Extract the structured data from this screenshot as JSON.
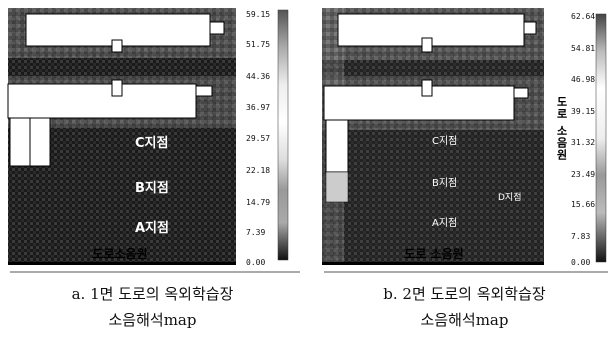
{
  "panels": [
    {
      "id": "a",
      "scale_labels": [
        "59.15",
        "51.75",
        "44.36",
        "36.97",
        "29.57",
        "22.18",
        "14.79",
        "7.39",
        "0.00"
      ],
      "point_labels": {
        "c": "C지점",
        "b": "B지점",
        "a": "A지점"
      },
      "source_label": "도로소음원",
      "caption_line1": "a. 1면 도로의 옥외학습장",
      "caption_line2": "소음해석map"
    },
    {
      "id": "b",
      "scale_labels": [
        "62.64",
        "54.81",
        "46.98",
        "39.15",
        "31.32",
        "23.49",
        "15.66",
        "7.83",
        "0.00"
      ],
      "point_labels": {
        "c": "C지점",
        "b": "B지점",
        "d": "D지점",
        "a": "A지점"
      },
      "source_label": "도로 소음원",
      "side_label": "도로 소음원",
      "caption_line1": "b. 2면 도로의 옥외학습장",
      "caption_line2": "소음해석map"
    }
  ]
}
